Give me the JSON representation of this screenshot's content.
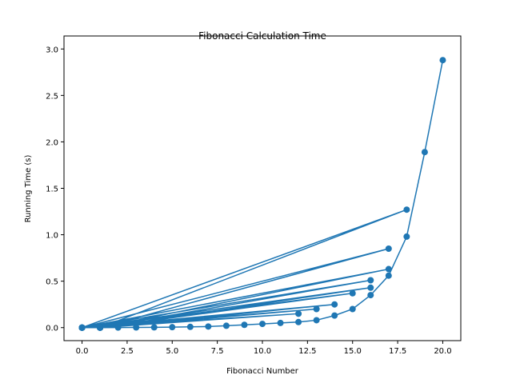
{
  "chart_data": {
    "type": "line",
    "title": "Fibonacci Calculation Time",
    "x_label": "Fibonacci Number",
    "y_label": "Running Time (s)",
    "x": [
      0,
      1,
      18,
      0,
      1,
      17,
      0,
      1,
      16,
      0,
      1,
      17,
      0,
      1,
      15,
      0,
      1,
      16,
      0,
      1,
      14,
      0,
      1,
      13,
      0,
      1,
      12,
      0,
      1,
      2,
      3,
      4,
      5,
      6,
      7,
      8,
      9,
      10,
      11,
      12,
      13,
      14,
      15,
      16,
      17,
      18,
      19,
      20
    ],
    "series": [
      {
        "color": "#1f77b4",
        "values": [
          0,
          0,
          1.27,
          0,
          0,
          0.85,
          0,
          0,
          0.51,
          0,
          0,
          0.63,
          0,
          0,
          0.37,
          0,
          0,
          0.43,
          0,
          0,
          0.25,
          0,
          0,
          0.2,
          0,
          0,
          0.15,
          0,
          0,
          0.001,
          0.002,
          0.003,
          0.005,
          0.008,
          0.012,
          0.02,
          0.03,
          0.04,
          0.05,
          0.06,
          0.08,
          0.13,
          0.2,
          0.35,
          0.56,
          0.98,
          1.89,
          2.88
        ]
      }
    ],
    "xlim": [
      -1,
      21
    ],
    "ylim": [
      -0.14,
      3.14
    ],
    "xticks": [
      {
        "value": 0,
        "label": "0.0"
      },
      {
        "value": 2.5,
        "label": "2.5"
      },
      {
        "value": 5,
        "label": "5.0"
      },
      {
        "value": 7.5,
        "label": "7.5"
      },
      {
        "value": 10,
        "label": "10.0"
      },
      {
        "value": 12.5,
        "label": "12.5"
      },
      {
        "value": 15,
        "label": "15.0"
      },
      {
        "value": 17.5,
        "label": "17.5"
      },
      {
        "value": 20,
        "label": "20.0"
      }
    ],
    "yticks": [
      {
        "value": 0,
        "label": "0.0"
      },
      {
        "value": 0.5,
        "label": "0.5"
      },
      {
        "value": 1,
        "label": "1.0"
      },
      {
        "value": 1.5,
        "label": "1.5"
      },
      {
        "value": 2,
        "label": "2.0"
      },
      {
        "value": 2.5,
        "label": "2.5"
      },
      {
        "value": 3,
        "label": "3.0"
      }
    ]
  }
}
